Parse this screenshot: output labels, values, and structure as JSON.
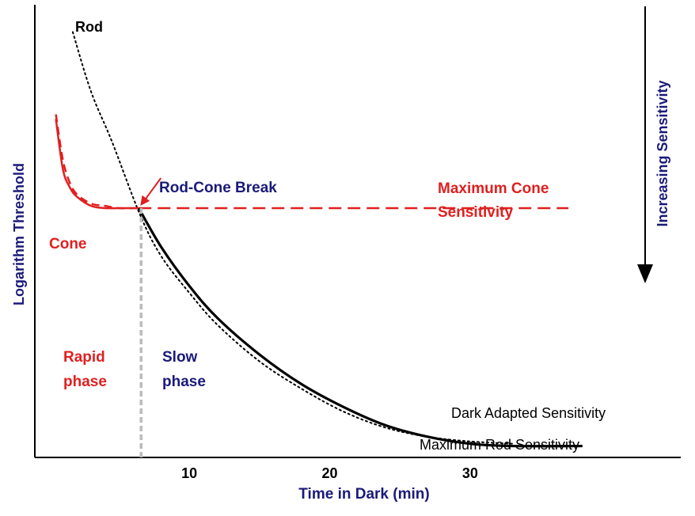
{
  "chart_data": {
    "type": "line",
    "title": "",
    "xlabel": "Time in Dark (min)",
    "ylabel": "Logarithm Threshold",
    "xlim": [
      -1,
      45
    ],
    "ylim": [
      0,
      10
    ],
    "grid": false,
    "x_ticks": [
      {
        "value": 10,
        "label": "10"
      },
      {
        "value": 20,
        "label": "20"
      },
      {
        "value": 30,
        "label": "30"
      }
    ],
    "series": [
      {
        "name": "Rod",
        "style": "dotted",
        "color": "#000000",
        "x": [
          1.7,
          3,
          4.5,
          6.5,
          8,
          10,
          12,
          15,
          18,
          21,
          24,
          27,
          30,
          33
        ],
        "y": [
          9.3,
          8.0,
          6.9,
          5.3,
          4.4,
          3.6,
          2.9,
          2.1,
          1.5,
          1.0,
          0.65,
          0.45,
          0.35,
          0.3
        ]
      },
      {
        "name": "Cone",
        "style": "solid",
        "color": "#e02020",
        "x": [
          0.5,
          1.0,
          1.5,
          2.0,
          3.0,
          4.0,
          5.0,
          6.4
        ],
        "y": [
          7.4,
          6.3,
          5.9,
          5.7,
          5.5,
          5.45,
          5.45,
          5.45
        ]
      },
      {
        "name": "Cone (dashed)",
        "style": "dashed",
        "color": "#e02020",
        "x": [
          0.5,
          1.0,
          1.5,
          2.0,
          3.0,
          4.0,
          5.0,
          6.4
        ],
        "y": [
          7.5,
          6.5,
          6.0,
          5.75,
          5.55,
          5.5,
          5.45,
          5.45
        ]
      },
      {
        "name": "Maximum Cone Sensitivity",
        "style": "dashed",
        "color": "#e02020",
        "x": [
          6.4,
          37
        ],
        "y": [
          5.45,
          5.45
        ]
      },
      {
        "name": "Dark Adapted Sensitivity",
        "style": "solid",
        "color": "#000000",
        "x": [
          6.4,
          8,
          10,
          12,
          15,
          18,
          21,
          24,
          27,
          30,
          33,
          38
        ],
        "y": [
          5.45,
          4.6,
          3.75,
          3.05,
          2.25,
          1.6,
          1.1,
          0.7,
          0.45,
          0.3,
          0.25,
          0.25
        ]
      }
    ],
    "annotations": {
      "rod": "Rod",
      "cone": "Cone",
      "break": "Rod-Cone Break",
      "max_cone_1": "Maximum Cone",
      "max_cone_2": "Sensitivity",
      "rapid_1": "Rapid",
      "rapid_2": "phase",
      "slow_1": "Slow",
      "slow_2": "phase",
      "dark_adapted": "Dark Adapted Sensitivity",
      "max_rod": "Maximum Rod Sensitivity",
      "increasing": "Increasing Sensitivity"
    },
    "break_point": {
      "x": 6.4,
      "y": 5.45
    },
    "colors": {
      "navy": "#1a1a7a",
      "red": "#e02020",
      "black": "#000000",
      "gray": "#bbbbbb"
    }
  }
}
